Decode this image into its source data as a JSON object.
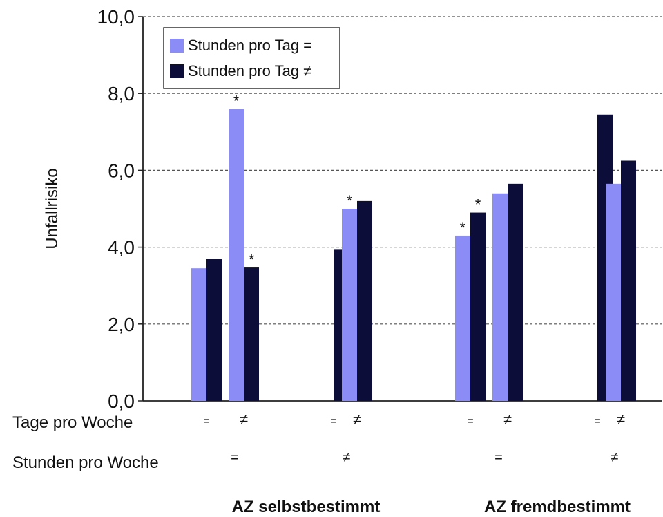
{
  "chart_data": {
    "type": "bar",
    "ylabel": "Unfallrisiko",
    "ylim": [
      0,
      10
    ],
    "yticks": [
      "0,0",
      "2,0",
      "4,0",
      "6,0",
      "8,0",
      "10,0"
    ],
    "grid": "horizontal dashed",
    "legend_position": "top-left",
    "series": [
      {
        "name": "Stunden pro Tag =",
        "color": "#8c8cf6"
      },
      {
        "name": "Stunden pro Tag ≠",
        "color": "#0d0d3a"
      }
    ],
    "row_labels": {
      "tage": "Tage pro Woche",
      "stunden": "Stunden pro Woche"
    },
    "clusters": [
      {
        "tage": "=",
        "light": 3.45,
        "dark": 3.7,
        "light_star": false,
        "dark_star": false
      },
      {
        "tage": "≠",
        "light": 7.6,
        "dark": 3.47,
        "light_star": true,
        "dark_star": true
      },
      {
        "tage": "=",
        "light": null,
        "dark": 3.95,
        "light_star": false,
        "dark_star": false
      },
      {
        "tage": "≠",
        "light": 5.0,
        "dark": 5.2,
        "light_star": true,
        "dark_star": false
      },
      {
        "tage": "=",
        "light": 4.3,
        "dark": 4.9,
        "light_star": true,
        "dark_star": true
      },
      {
        "tage": "≠",
        "light": 5.4,
        "dark": 5.65,
        "light_star": false,
        "dark_star": false
      },
      {
        "tage": "=",
        "light": null,
        "dark": 7.45,
        "light_star": false,
        "dark_star": false
      },
      {
        "tage": "≠",
        "light": 5.65,
        "dark": 6.25,
        "light_star": false,
        "dark_star": false
      }
    ],
    "stunden_labels": [
      "=",
      "≠",
      "=",
      "≠"
    ],
    "group_labels": [
      "AZ selbstbestimmt",
      "AZ fremdbestimmt"
    ],
    "star_symbol": "*"
  }
}
